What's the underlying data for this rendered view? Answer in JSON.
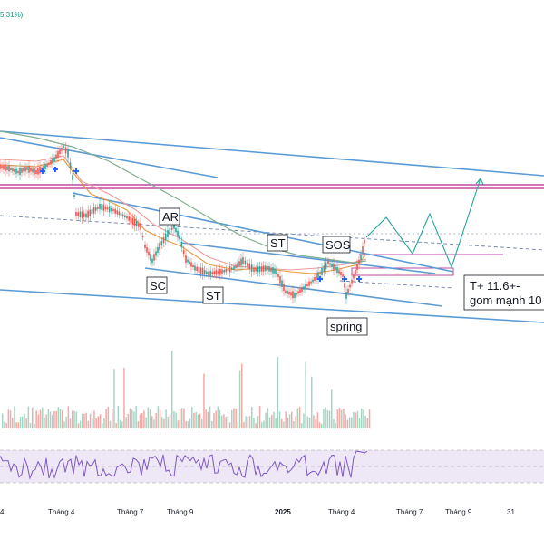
{
  "chart_data": {
    "type": "line",
    "header_change": "5.31%)",
    "x_ticks": [
      "Tháng 4",
      "Tháng 7",
      "Tháng 9",
      "2025",
      "Tháng 4",
      "Tháng 7",
      "Tháng 9",
      "31"
    ],
    "wyckoff_labels": [
      "AR",
      "ST",
      "SOS",
      "SC",
      "ST",
      "spring"
    ],
    "annotation": [
      "T+ 11.6+-",
      "gom mạnh 10"
    ],
    "colors": {
      "candle_up": "#26a69a",
      "candle_down": "#ef5350",
      "trendline": "#5b9bd5",
      "resistance_band": "#c04aa0",
      "ma_fast": "#e89a3c",
      "ma_mid": "#ef9a9a",
      "ma_slow": "#7fb08e",
      "rsi": "#7e57c2",
      "projection": "#26a69a"
    }
  }
}
